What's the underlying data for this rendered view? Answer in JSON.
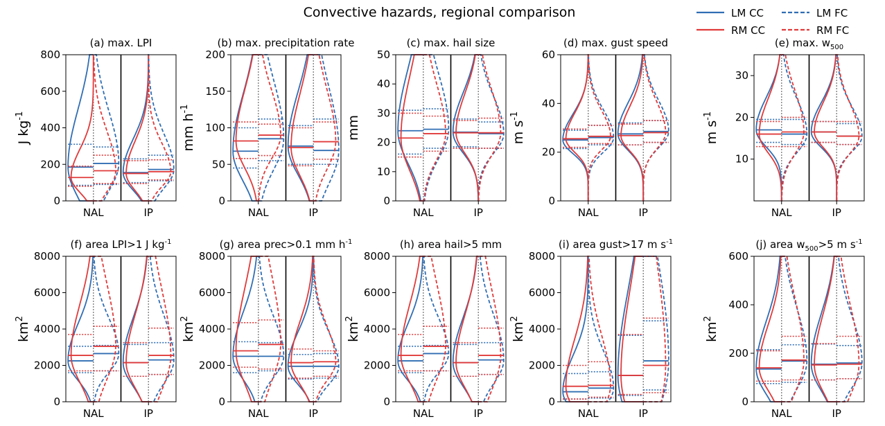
{
  "figure": {
    "title": "Convective hazards, regional comparison",
    "legend": [
      {
        "label": "LM CC",
        "color": "#2f6db3",
        "dash": "solid"
      },
      {
        "label": "RM CC",
        "color": "#e03a3a",
        "dash": "solid"
      },
      {
        "label": "LM FC",
        "color": "#2f6db3",
        "dash": "dashed"
      },
      {
        "label": "RM FC",
        "color": "#e03a3a",
        "dash": "dashed"
      }
    ],
    "colors": {
      "LM": "#2f6db3",
      "RM": "#e03a3a",
      "divider": "#000000",
      "center": "#888888"
    }
  },
  "chart_data": [
    {
      "type": "violin",
      "title": "(a) max. LPI",
      "unit": [
        "J kg",
        "-1",
        ""
      ],
      "categories": [
        "NAL",
        "IP"
      ],
      "ylim": [
        0,
        800
      ],
      "yticks": [
        0,
        200,
        400,
        600,
        800
      ],
      "stats": {
        "NAL": {
          "LM_CC": [
            85,
            185,
            310
          ],
          "RM_CC": [
            80,
            128,
            190
          ],
          "LM_FC": [
            90,
            205,
            295
          ],
          "RM_FC": [
            95,
            165,
            250
          ]
        },
        "IP": {
          "LM_CC": [
            100,
            155,
            230
          ],
          "RM_CC": [
            95,
            150,
            220
          ],
          "LM_FC": [
            110,
            172,
            250
          ],
          "RM_FC": [
            115,
            160,
            225
          ]
        }
      }
    },
    {
      "type": "violin",
      "title": "(b) max. precipitation rate",
      "unit": [
        "mm h",
        "-1",
        ""
      ],
      "categories": [
        "NAL",
        "IP"
      ],
      "ylim": [
        0,
        200
      ],
      "yticks": [
        0,
        50,
        100,
        150,
        200
      ],
      "stats": {
        "NAL": {
          "LM_CC": [
            45,
            68,
            100
          ],
          "RM_CC": [
            58,
            82,
            108
          ],
          "LM_FC": [
            55,
            85,
            112
          ],
          "RM_FC": [
            62,
            90,
            105
          ]
        },
        "IP": {
          "LM_CC": [
            50,
            75,
            103
          ],
          "RM_CC": [
            48,
            73,
            100
          ],
          "LM_FC": [
            50,
            69,
            112
          ],
          "RM_FC": [
            57,
            81,
            108
          ]
        }
      }
    },
    {
      "type": "violin",
      "title": "(c) max. hail size",
      "unit": [
        "mm",
        "",
        ""
      ],
      "categories": [
        "NAL",
        "IP"
      ],
      "ylim": [
        0,
        50
      ],
      "yticks": [
        0,
        10,
        20,
        30,
        40,
        50
      ],
      "stats": {
        "NAL": {
          "LM_CC": [
            16,
            24,
            31
          ],
          "RM_CC": [
            15,
            21.5,
            30
          ],
          "LM_FC": [
            18,
            24.5,
            31.5
          ],
          "RM_FC": [
            17,
            23,
            29
          ]
        },
        "IP": {
          "LM_CC": [
            18.5,
            23.5,
            28
          ],
          "RM_CC": [
            18,
            23.3,
            27.5
          ],
          "LM_FC": [
            18,
            23,
            27
          ],
          "RM_FC": [
            18,
            23.3,
            28.3
          ]
        }
      }
    },
    {
      "type": "violin",
      "title": "(d) max. gust speed",
      "unit": [
        "m s",
        "-1",
        ""
      ],
      "categories": [
        "NAL",
        "IP"
      ],
      "ylim": [
        0,
        60
      ],
      "yticks": [
        0,
        20,
        40,
        60
      ],
      "stats": {
        "NAL": {
          "LM_CC": [
            21.5,
            25,
            29
          ],
          "RM_CC": [
            22,
            25.5,
            29.5
          ],
          "LM_FC": [
            23,
            26,
            31
          ],
          "RM_FC": [
            23.5,
            26.5,
            31
          ]
        },
        "IP": {
          "LM_CC": [
            23,
            27.5,
            32
          ],
          "RM_CC": [
            23,
            26.8,
            31.5
          ],
          "LM_FC": [
            24,
            28.5,
            33
          ],
          "RM_FC": [
            24,
            28,
            33
          ]
        }
      }
    },
    {
      "type": "violin",
      "title": "(e) max. w",
      "title_sub": "500",
      "unit": [
        "m s",
        "-1",
        ""
      ],
      "categories": [
        "NAL",
        "IP"
      ],
      "ylim": [
        0,
        35
      ],
      "yticks": [
        10,
        20,
        30
      ],
      "stats": {
        "NAL": {
          "LM_CC": [
            14,
            17,
            19.5
          ],
          "RM_CC": [
            13,
            16,
            19
          ],
          "LM_FC": [
            13.5,
            16,
            19.5
          ],
          "RM_FC": [
            13,
            16.5,
            20
          ]
        },
        "IP": {
          "LM_CC": [
            14,
            16.5,
            19
          ],
          "RM_CC": [
            14,
            16.5,
            19
          ],
          "LM_FC": [
            13.5,
            15.5,
            18.5
          ],
          "RM_FC": [
            13.5,
            15.5,
            19
          ]
        }
      }
    },
    {
      "type": "violin",
      "title": "(f) area LPI>1 J kg",
      "title_sup": "-1",
      "unit": [
        "km",
        "",
        "2"
      ],
      "categories": [
        "NAL",
        "IP"
      ],
      "ylim": [
        0,
        8000
      ],
      "yticks": [
        0,
        2000,
        4000,
        6000,
        8000
      ],
      "stats": {
        "NAL": {
          "LM_CC": [
            1600,
            2250,
            3050
          ],
          "RM_CC": [
            1700,
            2550,
            3700
          ],
          "LM_FC": [
            1700,
            2650,
            3100
          ],
          "RM_FC": [
            1700,
            3050,
            4150
          ]
        },
        "IP": {
          "LM_CC": [
            1400,
            2150,
            3150
          ],
          "RM_CC": [
            1400,
            2150,
            3250
          ],
          "LM_FC": [
            1500,
            2300,
            3250
          ],
          "RM_FC": [
            1500,
            2550,
            4050
          ]
        }
      }
    },
    {
      "type": "violin",
      "title": "(g) area prec>0.1 mm h",
      "title_sup": "-1",
      "unit": [
        "km",
        "",
        "2"
      ],
      "categories": [
        "NAL",
        "IP"
      ],
      "ylim": [
        0,
        8000
      ],
      "yticks": [
        0,
        2000,
        4000,
        6000,
        8000
      ],
      "stats": {
        "NAL": {
          "LM_CC": [
            1600,
            2500,
            3300
          ],
          "RM_CC": [
            1900,
            2800,
            4350
          ],
          "LM_FC": [
            1700,
            2500,
            3250
          ],
          "RM_FC": [
            1800,
            3150,
            4500
          ]
        },
        "IP": {
          "LM_CC": [
            1250,
            1950,
            2600
          ],
          "RM_CC": [
            1300,
            2150,
            2900
          ],
          "LM_FC": [
            1300,
            1950,
            2650
          ],
          "RM_FC": [
            1400,
            2200,
            2800
          ]
        }
      }
    },
    {
      "type": "violin",
      "title": "(h) area hail>5 mm",
      "unit": [
        "km",
        "",
        "2"
      ],
      "categories": [
        "NAL",
        "IP"
      ],
      "ylim": [
        0,
        8000
      ],
      "yticks": [
        0,
        2000,
        4000,
        6000,
        8000
      ],
      "stats": {
        "NAL": {
          "LM_CC": [
            1600,
            2250,
            3050
          ],
          "RM_CC": [
            1700,
            2550,
            3700
          ],
          "LM_FC": [
            1700,
            2650,
            3100
          ],
          "RM_FC": [
            1700,
            3050,
            4150
          ]
        },
        "IP": {
          "LM_CC": [
            1400,
            2150,
            3150
          ],
          "RM_CC": [
            1400,
            2150,
            3250
          ],
          "LM_FC": [
            1500,
            2300,
            3250
          ],
          "RM_FC": [
            1500,
            2550,
            4050
          ]
        }
      }
    },
    {
      "type": "violin",
      "title": "(i) area gust>17 m s",
      "title_sup": "-1",
      "unit": [
        "km",
        "",
        "2"
      ],
      "categories": [
        "NAL",
        "IP"
      ],
      "ylim": [
        0,
        8000
      ],
      "yticks": [
        0,
        2000,
        4000,
        6000,
        8000
      ],
      "stats": {
        "NAL": {
          "LM_CC": [
            150,
            550,
            1550
          ],
          "RM_CC": [
            150,
            850,
            2000
          ],
          "LM_FC": [
            200,
            750,
            1650
          ],
          "RM_FC": [
            250,
            900,
            2200
          ]
        },
        "IP": {
          "LM_CC": [
            350,
            1450,
            3650
          ],
          "RM_CC": [
            400,
            1450,
            3700
          ],
          "LM_FC": [
            650,
            2250,
            4450
          ],
          "RM_FC": [
            500,
            2000,
            4600
          ]
        }
      }
    },
    {
      "type": "violin",
      "title": "(j) area w",
      "title_sub": "500",
      "title_tail": ">5 m s",
      "title_tail_sup": "-1",
      "unit": [
        "km",
        "",
        "2"
      ],
      "categories": [
        "NAL",
        "IP"
      ],
      "ylim": [
        0,
        600
      ],
      "yticks": [
        0,
        200,
        400,
        600
      ],
      "stats": {
        "NAL": {
          "LM_CC": [
            75,
            135,
            215
          ],
          "RM_CC": [
            85,
            140,
            210
          ],
          "LM_FC": [
            80,
            168,
            235
          ],
          "RM_FC": [
            90,
            172,
            270
          ]
        },
        "IP": {
          "LM_CC": [
            90,
            155,
            238
          ],
          "RM_CC": [
            90,
            152,
            240
          ],
          "LM_FC": [
            95,
            160,
            232
          ],
          "RM_FC": [
            95,
            155,
            270
          ]
        }
      }
    }
  ]
}
